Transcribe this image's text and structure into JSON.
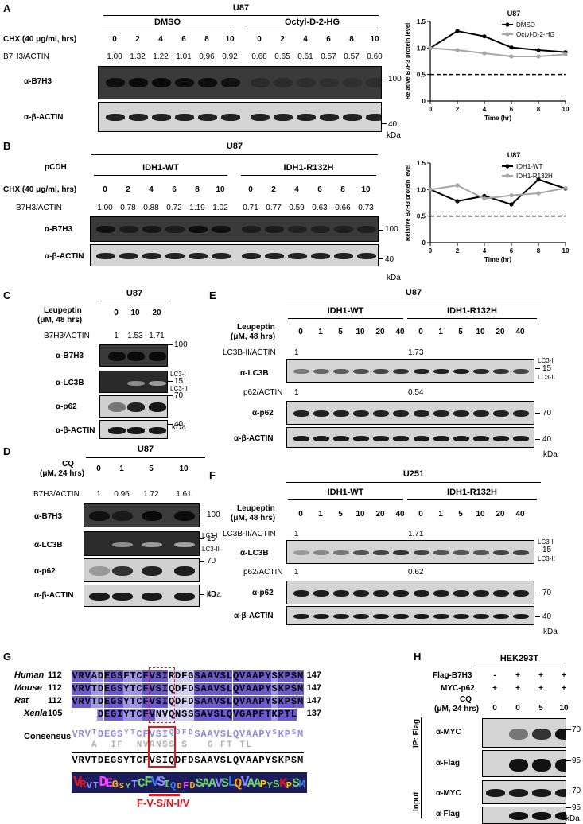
{
  "panels": {
    "A": {
      "letter": "A",
      "cell": "U87",
      "groups": [
        "DMSO",
        "Octyl-D-2-HG"
      ],
      "cond_label": "CHX (40 μg/ml, hrs)",
      "times": [
        "0",
        "2",
        "4",
        "6",
        "8",
        "10",
        "0",
        "2",
        "4",
        "6",
        "8",
        "10"
      ],
      "ratio_label": "B7H3/ACTIN",
      "ratios": [
        "1.00",
        "1.32",
        "1.22",
        "1.01",
        "0.96",
        "0.92",
        "0.68",
        "0.65",
        "0.61",
        "0.57",
        "0.57",
        "0.60"
      ],
      "blot1": "α-B7H3",
      "blot2": "α-β-ACTIN",
      "mw1": "100",
      "mw2": "40",
      "kda": "kDa"
    },
    "B": {
      "letter": "B",
      "cell": "U87",
      "vector": "pCDH",
      "groups": [
        "IDH1-WT",
        "IDH1-R132H"
      ],
      "cond_label": "CHX (40 μg/ml, hrs)",
      "times": [
        "0",
        "2",
        "4",
        "6",
        "8",
        "10",
        "0",
        "2",
        "4",
        "6",
        "8",
        "10"
      ],
      "ratio_label": "B7H3/ACTIN",
      "ratios": [
        "1.00",
        "0.78",
        "0.88",
        "0.72",
        "1.19",
        "1.02",
        "0.71",
        "0.77",
        "0.59",
        "0.63",
        "0.66",
        "0.73"
      ],
      "blot1": "α-B7H3",
      "blot2": "α-β-ACTIN",
      "mw1": "100",
      "mw2": "40",
      "kda": "kDa"
    },
    "C": {
      "letter": "C",
      "cell": "U87",
      "cond_label1": "Leupeptin",
      "cond_label2": "(μM, 48 hrs)",
      "doses": [
        "0",
        "10",
        "20"
      ],
      "ratio_label": "B7H3/ACTIN",
      "ratios": [
        "1",
        "1.53",
        "1.71"
      ],
      "blots": [
        "α-B7H3",
        "α-LC3B",
        "α-p62",
        "α-β-ACTIN"
      ],
      "mw": [
        "100",
        "15",
        "70",
        "40"
      ],
      "lc3i": "LC3-I",
      "lc3ii": "LC3-II",
      "kda": "kDa"
    },
    "D": {
      "letter": "D",
      "cell": "U87",
      "cond_label1": "CQ",
      "cond_label2": "(μM, 24 hrs)",
      "doses": [
        "0",
        "1",
        "5",
        "10"
      ],
      "ratio_label": "B7H3/ACTIN",
      "ratios": [
        "1",
        "0.96",
        "1.72",
        "1.61"
      ],
      "blots": [
        "α-B7H3",
        "α-LC3B",
        "α-p62",
        "α-β-ACTIN"
      ],
      "mw": [
        "100",
        "15",
        "70",
        "40"
      ],
      "lc3i": "LC3-I",
      "lc3ii": "LC3-II",
      "kda": "kDa"
    },
    "E": {
      "letter": "E",
      "cell": "U87",
      "groups": [
        "IDH1-WT",
        "IDH1-R132H"
      ],
      "cond_label1": "Leupeptin",
      "cond_label2": "(μM, 48 hrs)",
      "doses": [
        "0",
        "1",
        "5",
        "10",
        "20",
        "40",
        "0",
        "1",
        "5",
        "10",
        "20",
        "40"
      ],
      "lc3_label": "LC3B-II/ACTIN",
      "lc3_vals": [
        "1",
        "1.73"
      ],
      "p62_label": "p62/ACTIN",
      "p62_vals": [
        "1",
        "0.54"
      ],
      "blots": [
        "α-LC3B",
        "α-p62",
        "α-β-ACTIN"
      ],
      "mw": [
        "15",
        "70",
        "40"
      ],
      "lc3i": "LC3-I",
      "lc3ii": "LC3-II",
      "kda": "kDa"
    },
    "F": {
      "letter": "F",
      "cell": "U251",
      "groups": [
        "IDH1-WT",
        "IDH1-R132H"
      ],
      "cond_label1": "Leupeptin",
      "cond_label2": "(μM, 48 hrs)",
      "doses": [
        "0",
        "1",
        "5",
        "10",
        "20",
        "40",
        "0",
        "1",
        "5",
        "10",
        "20",
        "40"
      ],
      "lc3_label": "LC3B-II/ACTIN",
      "lc3_vals": [
        "1",
        "1.71"
      ],
      "p62_label": "p62/ACTIN",
      "p62_vals": [
        "1",
        "0.62"
      ],
      "blots": [
        "α-LC3B",
        "α-p62",
        "α-β-ACTIN"
      ],
      "mw": [
        "15",
        "70",
        "40"
      ],
      "lc3i": "LC3-I",
      "lc3ii": "LC3-II",
      "kda": "kDa"
    },
    "G": {
      "letter": "G",
      "species": [
        {
          "name": "Human",
          "start": "112",
          "seq": "VRVADEGSFTCFVSIRDFGSAAVSLQVAAPYSKPSM",
          "end": "147"
        },
        {
          "name": "Mouse",
          "start": "112",
          "seq": "VRVTDEGSYTCFVSIQDFDSAAVSLQVAAPYSKPSM",
          "end": "147"
        },
        {
          "name": "Rat",
          "start": "112",
          "seq": "VRVTDEGSYTCFVSIQDFDSAAVSLQVAAPYSKPSM",
          "end": "147"
        },
        {
          "name": "Xenla",
          "start": "105",
          "seq": "DEGIYTCFVNVQNSSSAVSLQVGAPFTKPTL",
          "end": "137"
        }
      ],
      "consensus_label": "Consensus",
      "consensus_top": "VRVTDEGSYTCFVSIQDFDSAAVSLQVAAPYSKPSM",
      "consensus_alt": "A  IF  NVRNSS S   G FT TL",
      "consensus_bottom": "VRVTDEGSYTCFVSIQDFDSAAVSLQVAAPYSKPSM",
      "logo": "VRVTDEGSYTCFVSIQDFDSAAVSLQVAAPYSKPSM",
      "motif": "F-V-S/N-I/V"
    },
    "H": {
      "letter": "H",
      "cell": "HEK293T",
      "row1_label": "Flag-B7H3",
      "row1": [
        "-",
        "+",
        "+",
        "+"
      ],
      "row2_label": "MYC-p62",
      "row2": [
        "+",
        "+",
        "+",
        "+"
      ],
      "cq_label1": "CQ",
      "cq_label2": "(μM, 24 hrs)",
      "cq": [
        "0",
        "0",
        "5",
        "10"
      ],
      "ip_label": "IP: Flag",
      "input_label": "Input",
      "blots": [
        "α-MYC",
        "α-Flag",
        "α-MYC",
        "α-Flag"
      ],
      "mw": [
        "70",
        "95",
        "70",
        "95"
      ],
      "kda": "kDa"
    }
  },
  "chart_data": [
    {
      "type": "line",
      "title": "U87",
      "xlabel": "Time (hr)",
      "ylabel": "Relative B7H3 protein level",
      "x": [
        0,
        2,
        4,
        6,
        8,
        10
      ],
      "xlim": [
        0,
        10
      ],
      "ylim": [
        0,
        1.5
      ],
      "xticks": [
        0,
        2,
        4,
        6,
        8,
        10
      ],
      "yticks": [
        0,
        0.5,
        1.0,
        1.5
      ],
      "ytick_labels": [
        "0",
        "0.5",
        "1.0",
        "1.5"
      ],
      "threshold": 0.5,
      "legend_position": "top-right",
      "series": [
        {
          "name": "DMSO",
          "color": "#000000",
          "values": [
            1.0,
            1.32,
            1.22,
            1.01,
            0.96,
            0.92
          ]
        },
        {
          "name": "Octyl-D-2-HG",
          "color": "#a6a6a6",
          "values": [
            1.0,
            0.96,
            0.9,
            0.84,
            0.84,
            0.88
          ]
        }
      ]
    },
    {
      "type": "line",
      "title": "U87",
      "xlabel": "Time (hr)",
      "ylabel": "Relative B7H3 protein level",
      "x": [
        0,
        2,
        4,
        6,
        8,
        10
      ],
      "xlim": [
        0,
        10
      ],
      "ylim": [
        0,
        1.5
      ],
      "xticks": [
        0,
        2,
        4,
        6,
        8,
        10
      ],
      "yticks": [
        0,
        0.5,
        1.0,
        1.5
      ],
      "ytick_labels": [
        "0",
        "0.5",
        "1.0",
        "1.5"
      ],
      "threshold": 0.5,
      "legend_position": "top-right",
      "series": [
        {
          "name": "IDH1-WT",
          "color": "#000000",
          "values": [
            1.0,
            0.78,
            0.88,
            0.72,
            1.19,
            1.02
          ]
        },
        {
          "name": "IDH1-R132H",
          "color": "#a6a6a6",
          "values": [
            1.0,
            1.08,
            0.83,
            0.89,
            0.93,
            1.03
          ]
        }
      ]
    }
  ]
}
